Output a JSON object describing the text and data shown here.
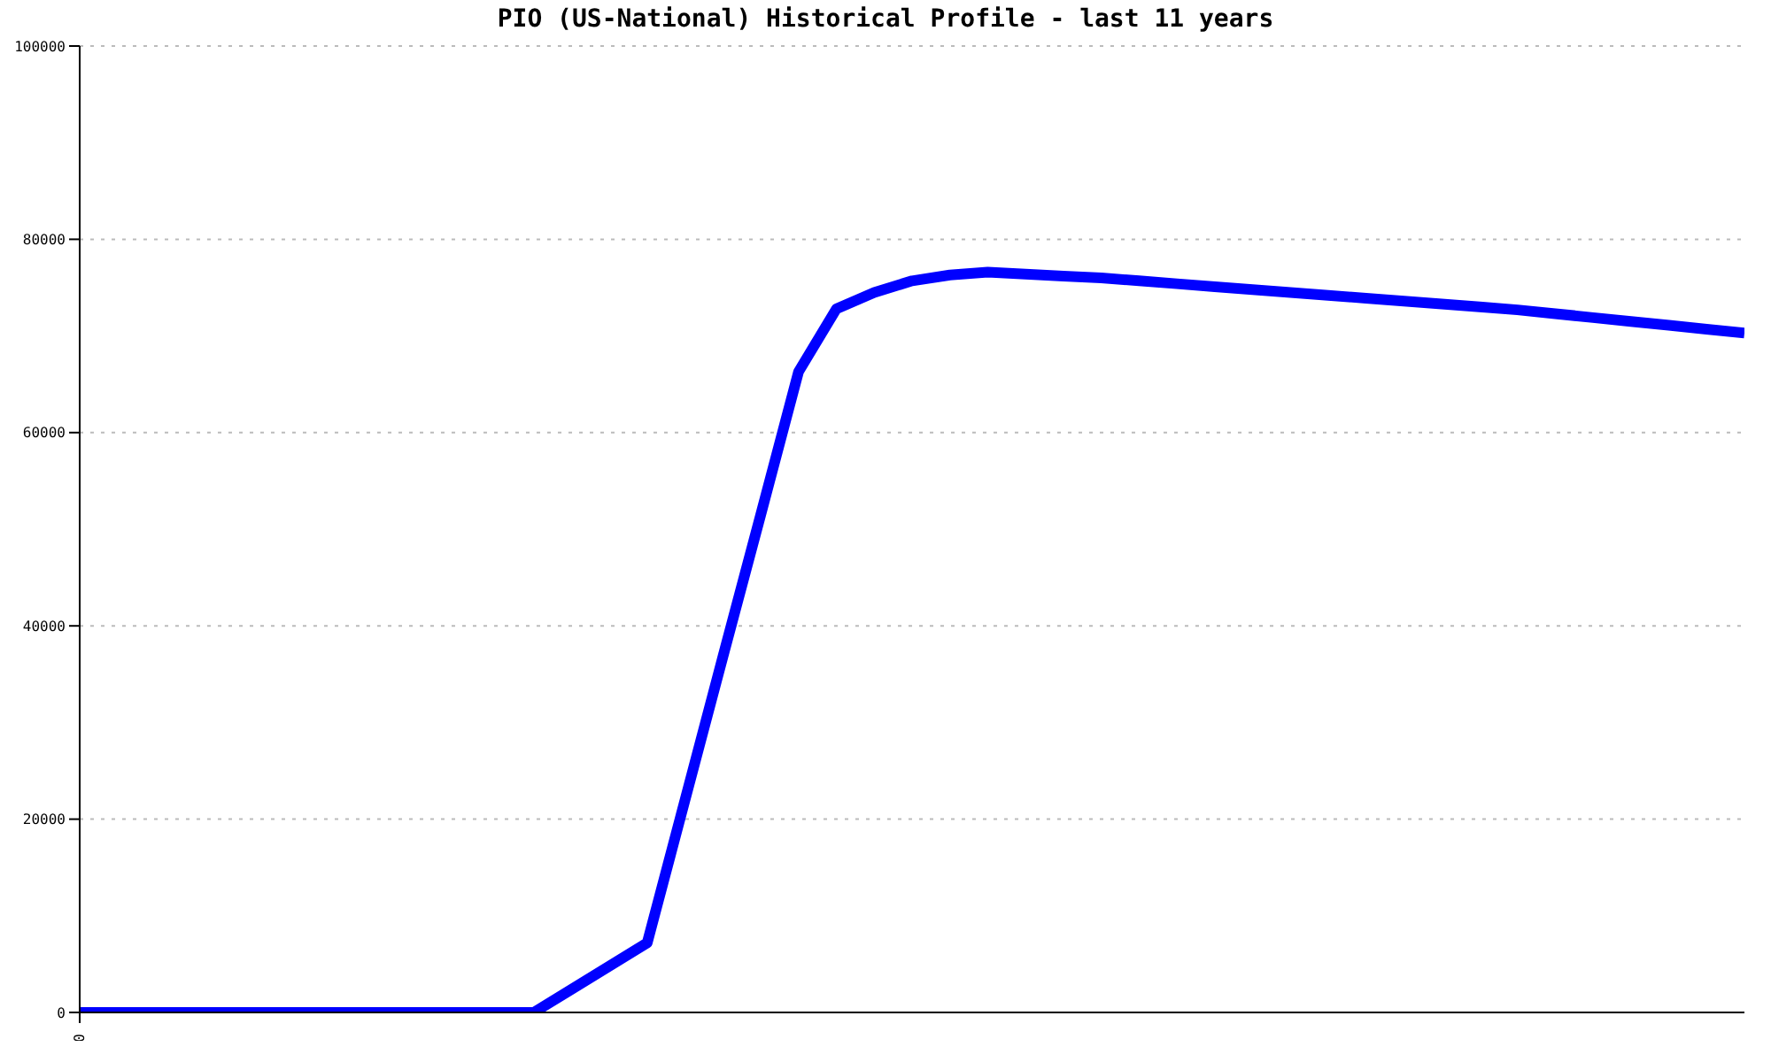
{
  "chart_data": {
    "type": "line",
    "title": "PIO (US-National) Historical Profile - last 11 years",
    "categories": [
      "0",
      null,
      null,
      null,
      null,
      null,
      null,
      null,
      null,
      null,
      null,
      null,
      null,
      null,
      null,
      null,
      null,
      null,
      null,
      null,
      null,
      null,
      null,
      null,
      null,
      null,
      null,
      null,
      null,
      null,
      null,
      null,
      null,
      null,
      null,
      null,
      null,
      null,
      null,
      null,
      null,
      null,
      null,
      null,
      null
    ],
    "series": [
      {
        "color": "#0000ff",
        "values": [
          0,
          0,
          0,
          0,
          0,
          0,
          0,
          0,
          0,
          0,
          0,
          0,
          0,
          2400,
          4800,
          7200,
          22000,
          36800,
          51500,
          66300,
          72800,
          74500,
          75700,
          76300,
          76600,
          76400,
          76200,
          76000,
          75700,
          75400,
          75100,
          74800,
          74500,
          74200,
          73900,
          73600,
          73300,
          73000,
          72700,
          72300,
          71900,
          71500,
          71100,
          70700,
          70300
        ]
      }
    ],
    "ylim": [
      0,
      100000
    ],
    "yticks": [
      0,
      20000,
      40000,
      60000,
      80000,
      100000
    ],
    "grid": "y",
    "legend": false,
    "marker": "none",
    "line_style": "solid"
  }
}
